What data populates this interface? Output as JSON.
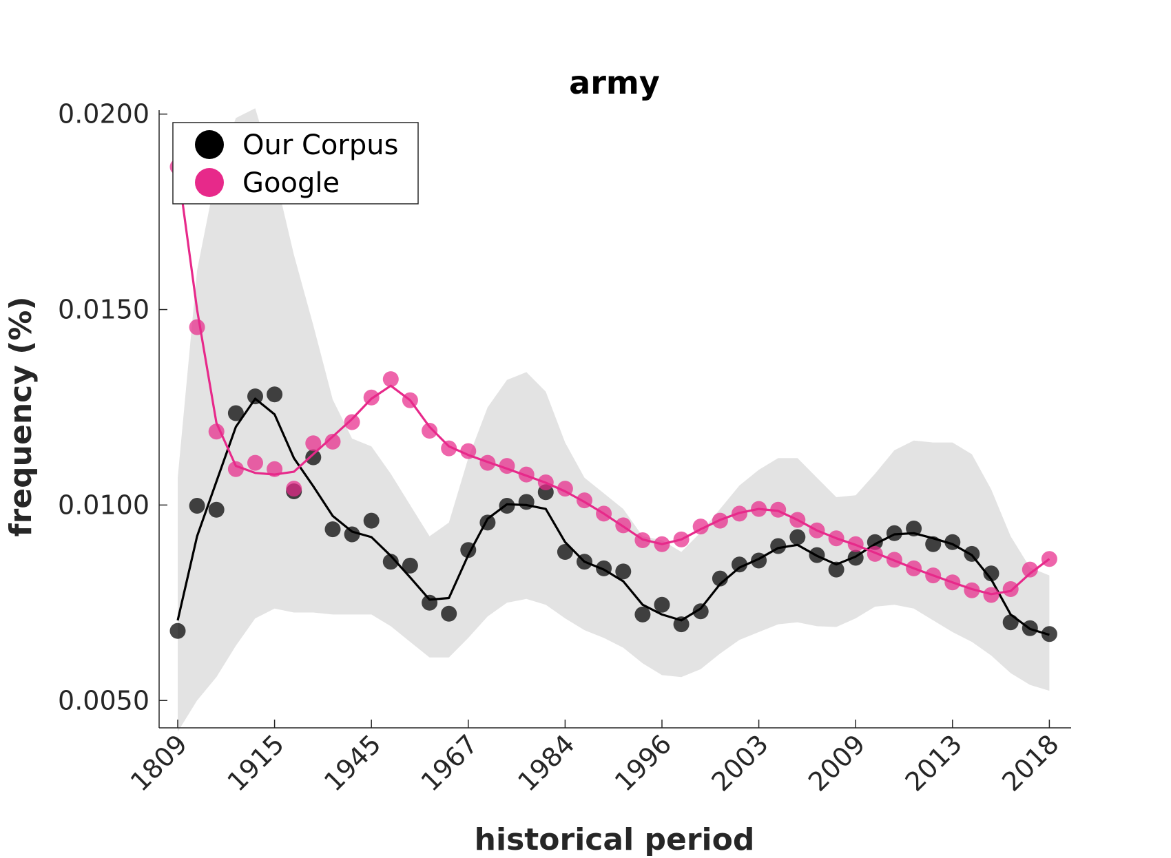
{
  "chart_data": {
    "type": "line",
    "title": "army",
    "xlabel": "historical period",
    "ylabel": "frequency (%)",
    "ylim": [
      0.0043,
      0.0201
    ],
    "yticks": [
      "0.0050",
      "0.0100",
      "0.0150",
      "0.0200"
    ],
    "yticks_values": [
      0.005,
      0.01,
      0.015,
      0.02
    ],
    "xtick_labels": [
      "1809",
      "1915",
      "1945",
      "1967",
      "1984",
      "1996",
      "2003",
      "2009",
      "2013",
      "2018"
    ],
    "xtick_positions": [
      0,
      5,
      10,
      15,
      20,
      25,
      30,
      35,
      40,
      45
    ],
    "grid": false,
    "legend_position": "top-left",
    "colors": {
      "corpus": "#000000",
      "google": "#e7298a",
      "band": "#e3e3e3"
    },
    "series": [
      {
        "name": "Our Corpus",
        "points": [
          0.00678,
          0.00998,
          0.00988,
          0.01235,
          0.01278,
          0.01283,
          0.01035,
          0.01122,
          0.00938,
          0.00925,
          0.0096,
          0.00855,
          0.00845,
          0.0075,
          0.00722,
          0.00885,
          0.00955,
          0.00998,
          0.01008,
          0.01033,
          0.0088,
          0.00855,
          0.00838,
          0.0083,
          0.0072,
          0.00745,
          0.00695,
          0.00728,
          0.00812,
          0.00848,
          0.00858,
          0.00895,
          0.00918,
          0.00872,
          0.00835,
          0.00865,
          0.00905,
          0.00928,
          0.0094,
          0.009,
          0.00905,
          0.00875,
          0.00825,
          0.007,
          0.00685,
          0.0067
        ],
        "smoothed": [
          0.00705,
          0.0092,
          0.0106,
          0.012,
          0.01272,
          0.01232,
          0.0112,
          0.01048,
          0.00972,
          0.00932,
          0.00918,
          0.0087,
          0.00815,
          0.00758,
          0.00762,
          0.00872,
          0.00965,
          0.01002,
          0.01,
          0.0099,
          0.00905,
          0.00855,
          0.00835,
          0.00805,
          0.00745,
          0.0072,
          0.00705,
          0.00735,
          0.00798,
          0.0084,
          0.00862,
          0.0089,
          0.00898,
          0.0087,
          0.00848,
          0.00868,
          0.009,
          0.00925,
          0.00928,
          0.00915,
          0.009,
          0.00872,
          0.0081,
          0.0072,
          0.00683,
          0.00668
        ]
      },
      {
        "name": "Google",
        "points": [
          0.01865,
          0.01455,
          0.01188,
          0.01092,
          0.01108,
          0.01092,
          0.01042,
          0.01158,
          0.01162,
          0.01212,
          0.01275,
          0.01322,
          0.01268,
          0.0119,
          0.01145,
          0.01138,
          0.01108,
          0.011,
          0.01078,
          0.01058,
          0.01042,
          0.01012,
          0.00978,
          0.00948,
          0.0091,
          0.009,
          0.00912,
          0.00945,
          0.0096,
          0.00978,
          0.0099,
          0.00988,
          0.00962,
          0.00935,
          0.00915,
          0.009,
          0.00875,
          0.0086,
          0.00838,
          0.0082,
          0.00802,
          0.00782,
          0.0077,
          0.00785,
          0.00835,
          0.00862
        ],
        "smoothed": [
          0.01865,
          0.015,
          0.0121,
          0.011,
          0.01082,
          0.01078,
          0.01085,
          0.0113,
          0.01175,
          0.0122,
          0.01272,
          0.01305,
          0.01268,
          0.012,
          0.0115,
          0.01128,
          0.0111,
          0.01093,
          0.01075,
          0.01057,
          0.01035,
          0.01008,
          0.00978,
          0.00945,
          0.00912,
          0.009,
          0.00912,
          0.00938,
          0.00962,
          0.0098,
          0.0099,
          0.00985,
          0.00962,
          0.00935,
          0.00915,
          0.00898,
          0.00878,
          0.00858,
          0.00838,
          0.0082,
          0.00802,
          0.00785,
          0.00772,
          0.0078,
          0.00825,
          0.00862
        ]
      }
    ],
    "band": {
      "upper": [
        0.0107,
        0.016,
        0.0185,
        0.0199,
        0.02015,
        0.0185,
        0.0164,
        0.0146,
        0.0127,
        0.0117,
        0.0115,
        0.0108,
        0.01,
        0.0092,
        0.00955,
        0.0112,
        0.0125,
        0.0132,
        0.0134,
        0.0129,
        0.0116,
        0.0107,
        0.0103,
        0.0099,
        0.0092,
        0.0091,
        0.0088,
        0.0093,
        0.0099,
        0.0105,
        0.0109,
        0.0112,
        0.0112,
        0.0107,
        0.0102,
        0.01025,
        0.0108,
        0.0114,
        0.01165,
        0.0116,
        0.0116,
        0.0113,
        0.0104,
        0.0092,
        0.0084,
        0.0082
      ],
      "lower": [
        0.0042,
        0.005,
        0.0056,
        0.0064,
        0.0071,
        0.00735,
        0.00725,
        0.00725,
        0.0072,
        0.0072,
        0.0072,
        0.0069,
        0.0065,
        0.0061,
        0.0061,
        0.0066,
        0.00715,
        0.0075,
        0.0076,
        0.00745,
        0.0071,
        0.0068,
        0.0066,
        0.00635,
        0.00595,
        0.00565,
        0.0056,
        0.0058,
        0.0062,
        0.00655,
        0.00675,
        0.00695,
        0.007,
        0.0069,
        0.00688,
        0.0071,
        0.0074,
        0.00745,
        0.00735,
        0.00705,
        0.00675,
        0.0065,
        0.00615,
        0.0057,
        0.0054,
        0.00525
      ]
    }
  }
}
